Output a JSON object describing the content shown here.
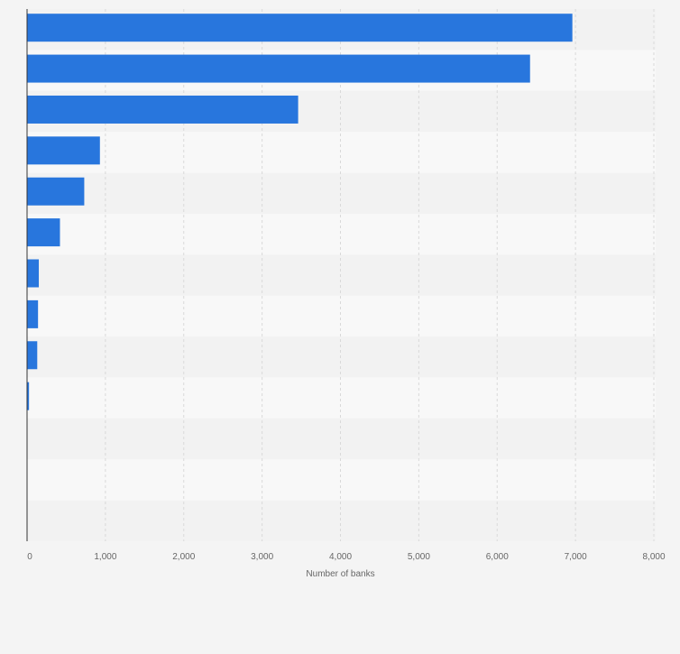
{
  "colors": {
    "bar": "#2876dd",
    "row_odd": "#f2f2f2",
    "row_even": "#f8f8f8",
    "grid": "#d9d9d9",
    "axis": "#333333",
    "tick_text": "#666666",
    "background": "#f4f4f4"
  },
  "chart_data": {
    "type": "bar",
    "orientation": "horizontal",
    "categories": [
      "",
      "",
      "",
      "",
      "",
      "",
      "",
      "",
      "",
      "",
      "",
      "",
      ""
    ],
    "values": [
      6960,
      6420,
      3460,
      930,
      730,
      420,
      150,
      140,
      130,
      25,
      0,
      0,
      0
    ],
    "xlabel": "Number of banks",
    "xlim": [
      0,
      8000
    ],
    "xticks": [
      0,
      1000,
      2000,
      3000,
      4000,
      5000,
      6000,
      7000,
      8000
    ],
    "xtick_labels": [
      "0",
      "1,000",
      "2,000",
      "3,000",
      "4,000",
      "5,000",
      "6,000",
      "7,000",
      "8,000"
    ],
    "grid": true,
    "legend": "none"
  }
}
